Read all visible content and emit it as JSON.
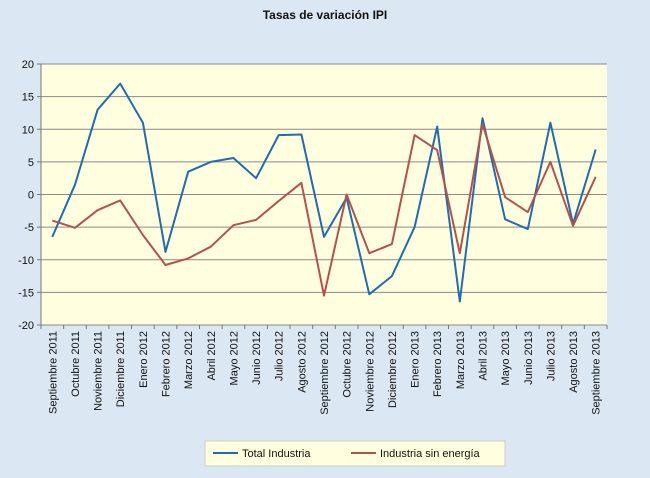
{
  "chart_data": {
    "type": "line",
    "title": "Tasas de variación IPI",
    "xlabel": "",
    "ylabel": "",
    "ylim": [
      -20,
      20
    ],
    "yticks": [
      -20,
      -15,
      -10,
      -5,
      0,
      5,
      10,
      15,
      20
    ],
    "grid": true,
    "legend_position": "bottom",
    "categories": [
      "Septiembre 2011",
      "Octubre 2011",
      "Noviembre 2011",
      "Diciembre 2011",
      "Enero 2012",
      "Febrero 2012",
      "Marzo 2012",
      "Abril 2012",
      "Mayo 2012",
      "Junio 2012",
      "Julio 2012",
      "Agosto 2012",
      "Septiembre 2012",
      "Octubre 2012",
      "Noviembre 2012",
      "Diciembre 2012",
      "Enero 2013",
      "Febrero 2013",
      "Marzo 2013",
      "Abril 2013",
      "Mayo 2013",
      "Junio 2013",
      "Julio 2013",
      "Agosto 2013",
      "Septiembre 2013"
    ],
    "series": [
      {
        "name": "Total Industria",
        "color": "#1f6cb0",
        "values": [
          -6.5,
          1.5,
          13.0,
          17.0,
          11.0,
          -8.8,
          3.5,
          5.0,
          5.6,
          2.5,
          9.1,
          9.2,
          -6.5,
          -0.5,
          -15.3,
          -12.5,
          -5.0,
          10.4,
          -16.4,
          11.7,
          -3.8,
          -5.3,
          11.0,
          -4.5,
          6.9
        ]
      },
      {
        "name": "Industria sin energía",
        "color": "#b5514d",
        "values": [
          -4.0,
          -5.1,
          -2.4,
          -0.9,
          -6.2,
          -10.8,
          -9.8,
          -8.0,
          -4.7,
          -3.9,
          -1.0,
          1.8,
          -15.5,
          0.0,
          -9.0,
          -7.6,
          9.1,
          6.8,
          -9.0,
          10.8,
          -0.4,
          -2.7,
          5.0,
          -4.8,
          2.7
        ]
      }
    ]
  }
}
